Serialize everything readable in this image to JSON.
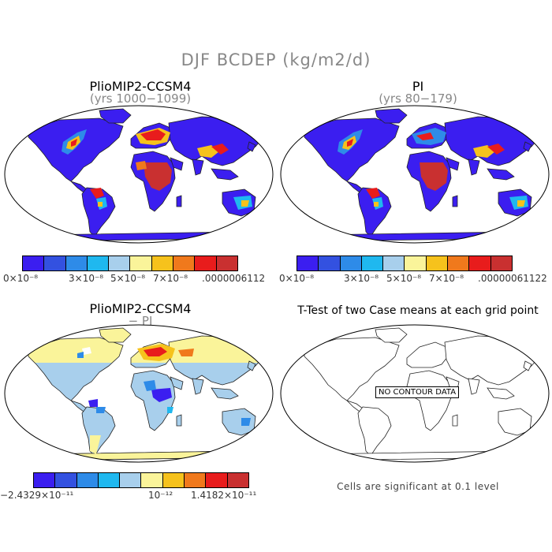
{
  "title": "DJF BCDEP (kg/m2/d)",
  "panels": {
    "tl": {
      "title": "PlioMIP2-CCSM4",
      "subtitle": "(yrs 1000−1099)"
    },
    "tr": {
      "title": "PI",
      "subtitle": "(yrs 80−179)"
    },
    "bl": {
      "title": "PlioMIP2-CCSM4",
      "subtitle": "− PI"
    },
    "br": {
      "title": "T-Test of two Case means at each grid point",
      "no_data": "NO CONTOUR DATA",
      "footer": "Cells are significant at 0.1 level"
    }
  },
  "colorbars": {
    "abs_colors": [
      "#3b1ef0",
      "#3351e0",
      "#2e8be8",
      "#1fb8ef",
      "#a8cfec",
      "#faf49a",
      "#f6c21c",
      "#f0791c",
      "#e81c1c",
      "#c93030"
    ],
    "diff_colors": [
      "#3b1ef0",
      "#3351e0",
      "#2e8be8",
      "#1fb8ef",
      "#a8cfec",
      "#faf49a",
      "#f6c21c",
      "#f0791c",
      "#e81c1c",
      "#c93030"
    ],
    "tl_labels": [
      "0×10⁻⁸",
      "3×10⁻⁸",
      "5×10⁻⁸",
      "7×10⁻⁸",
      ".0000006112"
    ],
    "tr_labels": [
      "0×10⁻⁸",
      "3×10⁻⁸",
      "5×10⁻⁸",
      "7×10⁻⁸",
      ".00000061122"
    ],
    "bl_labels": [
      "−2.4329×10⁻¹¹",
      "10⁻¹²",
      "1.4182×10⁻¹¹"
    ]
  }
}
